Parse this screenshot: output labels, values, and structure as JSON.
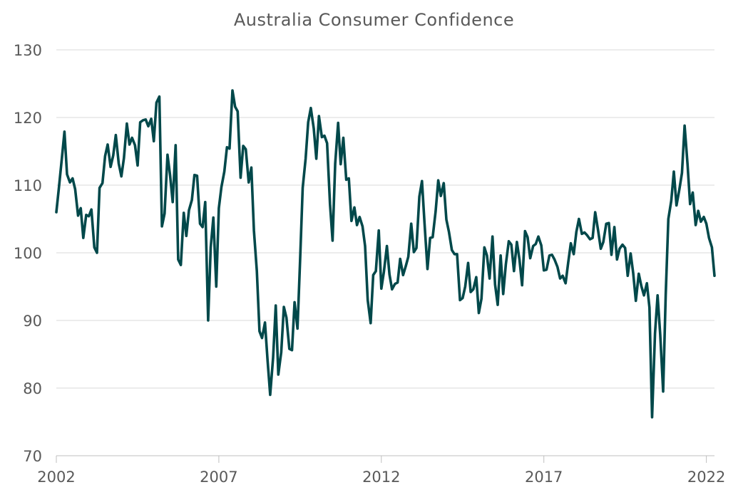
{
  "chart_data": {
    "type": "line",
    "title": "Australia Consumer Confidence",
    "xlabel": "",
    "ylabel": "",
    "xlim": [
      2002.0,
      2022.25
    ],
    "ylim": [
      70,
      130
    ],
    "y_ticks": [
      70,
      80,
      90,
      100,
      110,
      120,
      130
    ],
    "x_ticks": [
      2002,
      2007,
      2012,
      2017,
      2022
    ],
    "grid": "horizontal",
    "legend": "none",
    "color": "#00484A",
    "series": [
      {
        "values": [
          [
            2002.0,
            106.0
          ],
          [
            2002.08,
            109.6
          ],
          [
            2002.17,
            113.9
          ],
          [
            2002.25,
            117.9
          ],
          [
            2002.33,
            111.6
          ],
          [
            2002.42,
            110.4
          ],
          [
            2002.5,
            111.0
          ],
          [
            2002.58,
            109.4
          ],
          [
            2002.67,
            105.5
          ],
          [
            2002.75,
            106.6
          ],
          [
            2002.83,
            102.2
          ],
          [
            2002.92,
            105.6
          ],
          [
            2003.0,
            105.4
          ],
          [
            2003.08,
            106.4
          ],
          [
            2003.17,
            100.8
          ],
          [
            2003.25,
            100.0
          ],
          [
            2003.33,
            109.6
          ],
          [
            2003.42,
            110.3
          ],
          [
            2003.5,
            114.3
          ],
          [
            2003.58,
            116.0
          ],
          [
            2003.67,
            112.7
          ],
          [
            2003.75,
            114.4
          ],
          [
            2003.83,
            117.4
          ],
          [
            2003.92,
            113.2
          ],
          [
            2004.0,
            111.3
          ],
          [
            2004.08,
            114.0
          ],
          [
            2004.17,
            119.1
          ],
          [
            2004.25,
            116.0
          ],
          [
            2004.33,
            117.0
          ],
          [
            2004.42,
            115.9
          ],
          [
            2004.5,
            112.9
          ],
          [
            2004.58,
            119.3
          ],
          [
            2004.67,
            119.6
          ],
          [
            2004.75,
            119.7
          ],
          [
            2004.83,
            118.7
          ],
          [
            2004.92,
            119.8
          ],
          [
            2005.0,
            116.5
          ],
          [
            2005.08,
            122.2
          ],
          [
            2005.17,
            123.1
          ],
          [
            2005.25,
            103.9
          ],
          [
            2005.33,
            105.8
          ],
          [
            2005.42,
            114.5
          ],
          [
            2005.5,
            111.5
          ],
          [
            2005.58,
            107.5
          ],
          [
            2005.67,
            115.9
          ],
          [
            2005.75,
            99.0
          ],
          [
            2005.83,
            98.2
          ],
          [
            2005.92,
            105.9
          ],
          [
            2006.0,
            102.5
          ],
          [
            2006.08,
            106.3
          ],
          [
            2006.17,
            107.8
          ],
          [
            2006.25,
            111.5
          ],
          [
            2006.33,
            111.4
          ],
          [
            2006.42,
            104.3
          ],
          [
            2006.5,
            103.8
          ],
          [
            2006.58,
            107.5
          ],
          [
            2006.67,
            90.0
          ],
          [
            2006.75,
            100.8
          ],
          [
            2006.83,
            105.2
          ],
          [
            2006.92,
            95.0
          ],
          [
            2007.0,
            106.6
          ],
          [
            2007.08,
            109.7
          ],
          [
            2007.17,
            112.0
          ],
          [
            2007.25,
            115.6
          ],
          [
            2007.33,
            115.4
          ],
          [
            2007.42,
            124.0
          ],
          [
            2007.5,
            121.6
          ],
          [
            2007.58,
            120.9
          ],
          [
            2007.67,
            111.1
          ],
          [
            2007.75,
            115.8
          ],
          [
            2007.83,
            115.3
          ],
          [
            2007.92,
            110.4
          ],
          [
            2008.0,
            112.6
          ],
          [
            2008.08,
            103.3
          ],
          [
            2008.17,
            97.3
          ],
          [
            2008.25,
            88.4
          ],
          [
            2008.33,
            87.4
          ],
          [
            2008.42,
            89.7
          ],
          [
            2008.5,
            84.0
          ],
          [
            2008.58,
            79.0
          ],
          [
            2008.67,
            84.5
          ],
          [
            2008.75,
            92.2
          ],
          [
            2008.83,
            82.0
          ],
          [
            2008.92,
            85.3
          ],
          [
            2009.0,
            92.0
          ],
          [
            2009.08,
            90.4
          ],
          [
            2009.17,
            85.8
          ],
          [
            2009.25,
            85.6
          ],
          [
            2009.33,
            92.7
          ],
          [
            2009.42,
            88.8
          ],
          [
            2009.5,
            99.0
          ],
          [
            2009.58,
            109.6
          ],
          [
            2009.67,
            113.9
          ],
          [
            2009.75,
            119.3
          ],
          [
            2009.83,
            121.4
          ],
          [
            2009.92,
            118.4
          ],
          [
            2010.0,
            113.9
          ],
          [
            2010.08,
            120.2
          ],
          [
            2010.17,
            117.1
          ],
          [
            2010.25,
            117.3
          ],
          [
            2010.33,
            116.2
          ],
          [
            2010.42,
            107.2
          ],
          [
            2010.5,
            101.8
          ],
          [
            2010.58,
            113.2
          ],
          [
            2010.67,
            119.2
          ],
          [
            2010.75,
            113.1
          ],
          [
            2010.83,
            117.0
          ],
          [
            2010.92,
            110.8
          ],
          [
            2011.0,
            111.0
          ],
          [
            2011.08,
            104.7
          ],
          [
            2011.17,
            106.7
          ],
          [
            2011.25,
            104.1
          ],
          [
            2011.33,
            105.3
          ],
          [
            2011.42,
            103.9
          ],
          [
            2011.5,
            101.0
          ],
          [
            2011.58,
            93.0
          ],
          [
            2011.67,
            89.6
          ],
          [
            2011.75,
            96.7
          ],
          [
            2011.83,
            97.3
          ],
          [
            2011.92,
            103.3
          ],
          [
            2012.0,
            94.7
          ],
          [
            2012.08,
            97.2
          ],
          [
            2012.17,
            101.0
          ],
          [
            2012.25,
            96.8
          ],
          [
            2012.33,
            94.6
          ],
          [
            2012.42,
            95.4
          ],
          [
            2012.5,
            95.6
          ],
          [
            2012.58,
            99.1
          ],
          [
            2012.67,
            96.7
          ],
          [
            2012.75,
            98.0
          ],
          [
            2012.83,
            99.4
          ],
          [
            2012.92,
            104.3
          ],
          [
            2013.0,
            100.1
          ],
          [
            2013.08,
            100.7
          ],
          [
            2013.17,
            108.3
          ],
          [
            2013.25,
            110.6
          ],
          [
            2013.33,
            104.3
          ],
          [
            2013.42,
            97.6
          ],
          [
            2013.5,
            102.2
          ],
          [
            2013.58,
            102.3
          ],
          [
            2013.67,
            106.1
          ],
          [
            2013.75,
            110.7
          ],
          [
            2013.83,
            108.4
          ],
          [
            2013.92,
            110.3
          ],
          [
            2014.0,
            104.9
          ],
          [
            2014.08,
            103.1
          ],
          [
            2014.17,
            100.4
          ],
          [
            2014.25,
            99.8
          ],
          [
            2014.33,
            99.8
          ],
          [
            2014.42,
            93.0
          ],
          [
            2014.5,
            93.3
          ],
          [
            2014.58,
            95.0
          ],
          [
            2014.67,
            98.5
          ],
          [
            2014.75,
            94.2
          ],
          [
            2014.83,
            94.6
          ],
          [
            2014.92,
            96.4
          ],
          [
            2015.0,
            91.1
          ],
          [
            2015.08,
            93.2
          ],
          [
            2015.17,
            100.8
          ],
          [
            2015.25,
            99.6
          ],
          [
            2015.33,
            96.2
          ],
          [
            2015.42,
            102.4
          ],
          [
            2015.5,
            95.3
          ],
          [
            2015.58,
            92.3
          ],
          [
            2015.67,
            99.6
          ],
          [
            2015.75,
            93.9
          ],
          [
            2015.83,
            98.3
          ],
          [
            2015.92,
            101.7
          ],
          [
            2016.0,
            101.2
          ],
          [
            2016.08,
            97.3
          ],
          [
            2016.17,
            101.6
          ],
          [
            2016.25,
            99.0
          ],
          [
            2016.33,
            95.2
          ],
          [
            2016.42,
            103.2
          ],
          [
            2016.5,
            102.3
          ],
          [
            2016.58,
            99.2
          ],
          [
            2016.67,
            101.0
          ],
          [
            2016.75,
            101.3
          ],
          [
            2016.83,
            102.4
          ],
          [
            2016.92,
            101.1
          ],
          [
            2017.0,
            97.4
          ],
          [
            2017.08,
            97.5
          ],
          [
            2017.17,
            99.6
          ],
          [
            2017.25,
            99.7
          ],
          [
            2017.33,
            99.0
          ],
          [
            2017.42,
            97.9
          ],
          [
            2017.5,
            96.2
          ],
          [
            2017.58,
            96.6
          ],
          [
            2017.67,
            95.5
          ],
          [
            2017.75,
            98.6
          ],
          [
            2017.83,
            101.4
          ],
          [
            2017.92,
            99.8
          ],
          [
            2018.0,
            103.1
          ],
          [
            2018.08,
            105.0
          ],
          [
            2018.17,
            102.8
          ],
          [
            2018.25,
            103.0
          ],
          [
            2018.33,
            102.6
          ],
          [
            2018.42,
            102.0
          ],
          [
            2018.5,
            102.2
          ],
          [
            2018.58,
            106.0
          ],
          [
            2018.67,
            103.3
          ],
          [
            2018.75,
            100.6
          ],
          [
            2018.83,
            101.6
          ],
          [
            2018.92,
            104.3
          ],
          [
            2019.0,
            104.4
          ],
          [
            2019.08,
            99.7
          ],
          [
            2019.17,
            103.8
          ],
          [
            2019.25,
            99.0
          ],
          [
            2019.33,
            100.6
          ],
          [
            2019.42,
            101.2
          ],
          [
            2019.5,
            100.7
          ],
          [
            2019.58,
            96.6
          ],
          [
            2019.67,
            99.9
          ],
          [
            2019.75,
            97.0
          ],
          [
            2019.83,
            92.9
          ],
          [
            2019.92,
            96.9
          ],
          [
            2020.0,
            95.1
          ],
          [
            2020.08,
            93.7
          ],
          [
            2020.17,
            95.5
          ],
          [
            2020.25,
            91.9
          ],
          [
            2020.33,
            75.7
          ],
          [
            2020.42,
            88.1
          ],
          [
            2020.5,
            93.7
          ],
          [
            2020.58,
            87.9
          ],
          [
            2020.67,
            79.5
          ],
          [
            2020.75,
            93.8
          ],
          [
            2020.83,
            105.0
          ],
          [
            2020.92,
            107.7
          ],
          [
            2021.0,
            112.0
          ],
          [
            2021.08,
            107.0
          ],
          [
            2021.17,
            109.4
          ],
          [
            2021.25,
            111.8
          ],
          [
            2021.33,
            118.8
          ],
          [
            2021.42,
            113.1
          ],
          [
            2021.5,
            107.2
          ],
          [
            2021.58,
            108.9
          ],
          [
            2021.67,
            104.1
          ],
          [
            2021.75,
            106.2
          ],
          [
            2021.83,
            104.6
          ],
          [
            2021.92,
            105.3
          ],
          [
            2022.0,
            104.3
          ],
          [
            2022.08,
            102.2
          ],
          [
            2022.17,
            100.8
          ],
          [
            2022.25,
            96.6
          ]
        ]
      }
    ]
  }
}
